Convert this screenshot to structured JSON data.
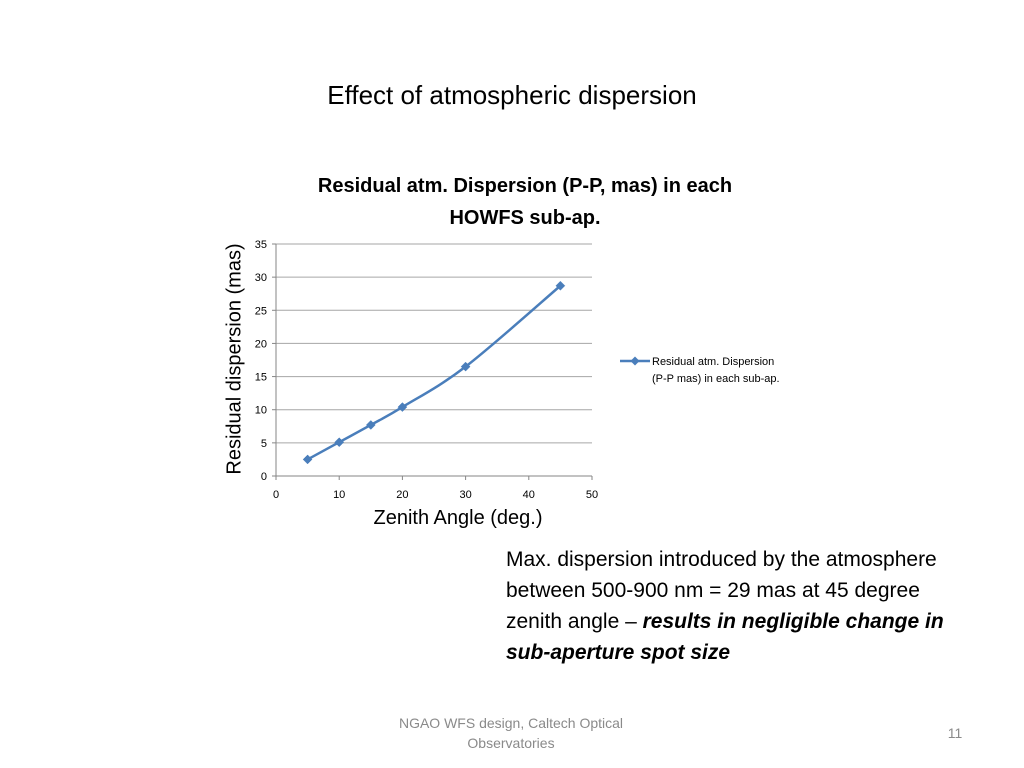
{
  "slide": {
    "title": "Effect of atmospheric dispersion",
    "body_text": "Max. dispersion introduced by the atmosphere between 500-900 nm = 29 mas at 45 degree zenith angle – ",
    "body_text_emphasis": "results in negligible change in sub-aperture spot size",
    "footer": "NGAO WFS design, Caltech Optical Observatories",
    "page_number": "11"
  },
  "colors": {
    "series": "#4a7ebb",
    "gridline": "#a6a6a6",
    "axis": "#868686"
  },
  "chart_data": {
    "type": "line",
    "title": "Residual atm. Dispersion (P-P, mas) in each HOWFS sub-ap.",
    "xlabel": "Zenith Angle (deg.)",
    "ylabel": "Residual dispersion (mas)",
    "xlim": [
      0,
      50
    ],
    "ylim": [
      0,
      35
    ],
    "xticks": [
      0,
      10,
      20,
      30,
      40,
      50
    ],
    "yticks": [
      0,
      5,
      10,
      15,
      20,
      25,
      30,
      35
    ],
    "grid": "horizontal",
    "legend_position": "right",
    "series": [
      {
        "name": "Residual atm. Dispersion (P-P mas) in each sub-ap.",
        "marker": "diamond",
        "x": [
          5,
          10,
          15,
          20,
          30,
          45
        ],
        "y": [
          2.5,
          5.1,
          7.7,
          10.4,
          16.5,
          28.7
        ]
      }
    ]
  }
}
